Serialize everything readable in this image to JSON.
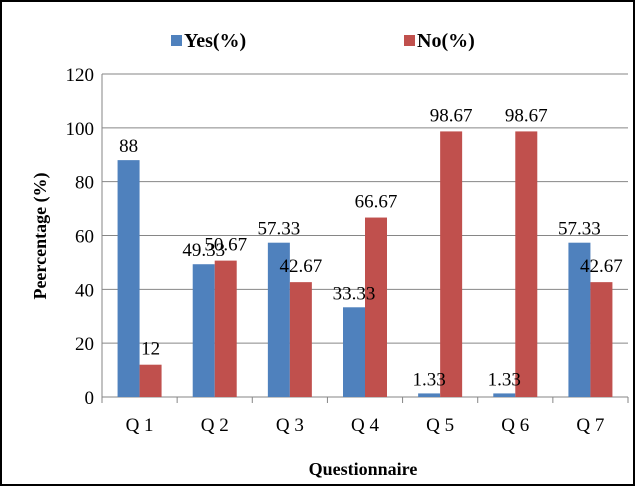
{
  "chart_data": {
    "type": "bar",
    "title": "",
    "xlabel": "Questionnaire",
    "ylabel": "Peercentage (%)",
    "ylim": [
      0,
      120
    ],
    "yticks": [
      "0",
      "20",
      "40",
      "60",
      "80",
      "100",
      "120"
    ],
    "categories": [
      "Q 1",
      "Q 2",
      "Q 3",
      "Q 4",
      "Q 5",
      "Q 6",
      "Q 7"
    ],
    "series": [
      {
        "name": "Yes(%)",
        "color": "#4F81BD",
        "values": [
          88,
          49.33,
          57.33,
          33.33,
          1.33,
          1.33,
          57.33
        ],
        "labels": [
          "88",
          "49.33",
          "57.33",
          "33.33",
          "1.33",
          "1.33",
          "57.33"
        ]
      },
      {
        "name": "No(%)",
        "color": "#C0504D",
        "values": [
          12,
          50.67,
          42.67,
          66.67,
          98.67,
          98.67,
          42.67
        ],
        "labels": [
          "12",
          "50.67",
          "42.67",
          "66.67",
          "98.67",
          "98.67",
          "42.67"
        ]
      }
    ],
    "grid": true,
    "legend": "top"
  }
}
